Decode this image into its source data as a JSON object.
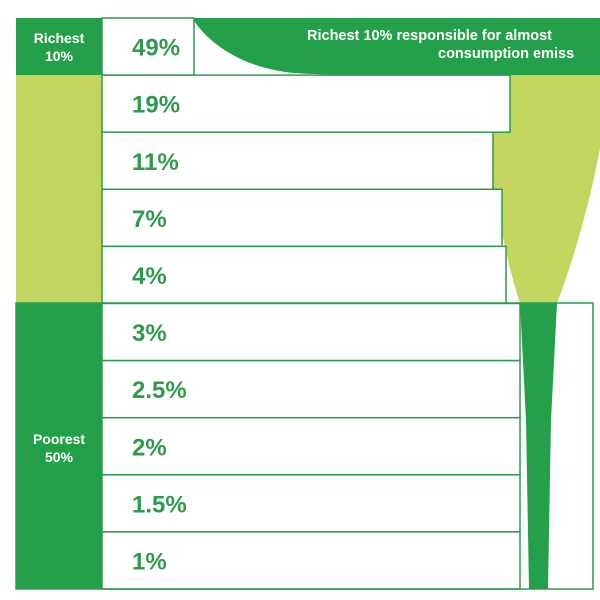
{
  "colors": {
    "dark_green": "#24a04b",
    "light_green": "#c3d55f",
    "text_green": "#2f9a4c",
    "border": "#2f9a4c",
    "background": "#ffffff"
  },
  "groups": {
    "richest": {
      "line1": "Richest",
      "line2": "10%"
    },
    "poorest": {
      "line1": "Poorest",
      "line2": "50%"
    }
  },
  "annotation": {
    "line1": "Richest 10% responsible for almost",
    "line2": "consumption emiss"
  },
  "chart_data": {
    "type": "table",
    "categories": [
      "Richest 10%",
      "",
      "",
      "",
      "",
      "",
      "",
      "",
      "",
      "Poorest 50%"
    ],
    "values": [
      49,
      19,
      11,
      7,
      4,
      3,
      2.5,
      2,
      1.5,
      1
    ],
    "value_labels": [
      "49%",
      "19%",
      "11%",
      "7%",
      "4%",
      "3%",
      "2.5%",
      "2%",
      "1.5%",
      "1%"
    ],
    "title": "",
    "xlabel": "",
    "ylabel": ""
  }
}
